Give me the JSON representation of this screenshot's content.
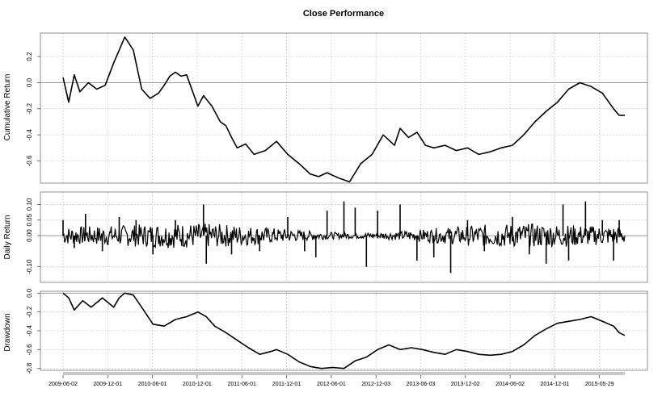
{
  "chart_data": [
    {
      "panel": "cumulative",
      "type": "line",
      "title": "Close Performance",
      "ylabel": "Cumulative Return",
      "yticks": [
        0.2,
        0.0,
        -0.2,
        -0.4,
        -0.6
      ],
      "ytick_labels": [
        "0.2",
        "0.0",
        "-0.2",
        "-0.4",
        "-0.6"
      ],
      "ylim": [
        -0.77,
        0.38
      ],
      "grid": true,
      "x": [
        0,
        0.01,
        0.02,
        0.03,
        0.045,
        0.06,
        0.075,
        0.09,
        0.11,
        0.125,
        0.14,
        0.155,
        0.17,
        0.18,
        0.19,
        0.2,
        0.21,
        0.22,
        0.24,
        0.25,
        0.265,
        0.28,
        0.29,
        0.3,
        0.31,
        0.325,
        0.34,
        0.36,
        0.38,
        0.4,
        0.42,
        0.44,
        0.455,
        0.47,
        0.49,
        0.51,
        0.53,
        0.55,
        0.57,
        0.59,
        0.6,
        0.615,
        0.63,
        0.645,
        0.66,
        0.68,
        0.7,
        0.72,
        0.74,
        0.76,
        0.78,
        0.8,
        0.82,
        0.84,
        0.86,
        0.88,
        0.9,
        0.92,
        0.94,
        0.96,
        0.98,
        0.99,
        1.0
      ],
      "y": [
        0.04,
        -0.15,
        0.06,
        -0.07,
        0.0,
        -0.05,
        -0.02,
        0.15,
        0.35,
        0.25,
        -0.05,
        -0.12,
        -0.08,
        -0.02,
        0.05,
        0.08,
        0.05,
        0.06,
        -0.18,
        -0.1,
        -0.18,
        -0.3,
        -0.33,
        -0.42,
        -0.5,
        -0.47,
        -0.55,
        -0.52,
        -0.45,
        -0.55,
        -0.62,
        -0.7,
        -0.72,
        -0.69,
        -0.73,
        -0.76,
        -0.62,
        -0.55,
        -0.4,
        -0.48,
        -0.35,
        -0.42,
        -0.38,
        -0.48,
        -0.5,
        -0.48,
        -0.52,
        -0.5,
        -0.55,
        -0.53,
        -0.5,
        -0.48,
        -0.4,
        -0.3,
        -0.22,
        -0.15,
        -0.05,
        0.0,
        -0.03,
        -0.08,
        -0.2,
        -0.25,
        -0.25
      ]
    },
    {
      "panel": "daily",
      "type": "line",
      "ylabel": "Daily Return",
      "yticks": [
        0.1,
        0.05,
        0.0,
        -0.1
      ],
      "ytick_labels": [
        "0.10",
        "0.05",
        "0.00",
        "-0.10"
      ],
      "ylim": [
        -0.15,
        0.14
      ],
      "grid": true,
      "spikes": [
        [
          0.0,
          0.05
        ],
        [
          0.02,
          -0.04
        ],
        [
          0.04,
          0.07
        ],
        [
          0.07,
          -0.05
        ],
        [
          0.1,
          0.06
        ],
        [
          0.13,
          0.05
        ],
        [
          0.16,
          -0.06
        ],
        [
          0.2,
          0.05
        ],
        [
          0.25,
          0.1
        ],
        [
          0.255,
          -0.09
        ],
        [
          0.3,
          -0.06
        ],
        [
          0.35,
          -0.05
        ],
        [
          0.4,
          0.06
        ],
        [
          0.43,
          -0.05
        ],
        [
          0.45,
          -0.07
        ],
        [
          0.47,
          0.08
        ],
        [
          0.5,
          0.11
        ],
        [
          0.52,
          0.09
        ],
        [
          0.54,
          -0.1
        ],
        [
          0.56,
          0.08
        ],
        [
          0.6,
          0.1
        ],
        [
          0.63,
          -0.08
        ],
        [
          0.66,
          -0.07
        ],
        [
          0.69,
          -0.12
        ],
        [
          0.72,
          0.05
        ],
        [
          0.75,
          -0.05
        ],
        [
          0.8,
          0.06
        ],
        [
          0.83,
          -0.06
        ],
        [
          0.86,
          -0.09
        ],
        [
          0.89,
          0.1
        ],
        [
          0.9,
          -0.08
        ],
        [
          0.93,
          0.11
        ],
        [
          0.96,
          0.05
        ],
        [
          0.98,
          -0.08
        ],
        [
          0.99,
          0.05
        ]
      ]
    },
    {
      "panel": "drawdown",
      "type": "line",
      "ylabel": "Drawdown",
      "yticks": [
        0.0,
        -0.2,
        -0.4,
        -0.6,
        -0.8
      ],
      "ytick_labels": [
        "0.0",
        "-0.2",
        "-0.4",
        "-0.6",
        "-0.8"
      ],
      "ylim": [
        -0.82,
        0.02
      ],
      "grid": true,
      "x": [
        0,
        0.01,
        0.02,
        0.035,
        0.05,
        0.07,
        0.09,
        0.1,
        0.11,
        0.125,
        0.14,
        0.16,
        0.18,
        0.2,
        0.22,
        0.24,
        0.255,
        0.27,
        0.29,
        0.31,
        0.33,
        0.35,
        0.37,
        0.38,
        0.4,
        0.42,
        0.44,
        0.46,
        0.48,
        0.5,
        0.52,
        0.54,
        0.56,
        0.58,
        0.6,
        0.62,
        0.64,
        0.66,
        0.68,
        0.7,
        0.72,
        0.74,
        0.76,
        0.78,
        0.8,
        0.82,
        0.84,
        0.86,
        0.88,
        0.9,
        0.92,
        0.94,
        0.96,
        0.98,
        0.99,
        1.0
      ],
      "y": [
        0.0,
        -0.05,
        -0.18,
        -0.08,
        -0.15,
        -0.05,
        -0.15,
        -0.05,
        0.0,
        -0.02,
        -0.15,
        -0.33,
        -0.35,
        -0.28,
        -0.25,
        -0.2,
        -0.25,
        -0.35,
        -0.42,
        -0.5,
        -0.58,
        -0.65,
        -0.62,
        -0.6,
        -0.65,
        -0.73,
        -0.78,
        -0.8,
        -0.79,
        -0.8,
        -0.72,
        -0.68,
        -0.6,
        -0.55,
        -0.6,
        -0.58,
        -0.6,
        -0.63,
        -0.65,
        -0.6,
        -0.62,
        -0.65,
        -0.66,
        -0.65,
        -0.62,
        -0.55,
        -0.45,
        -0.38,
        -0.32,
        -0.3,
        -0.28,
        -0.25,
        -0.3,
        -0.35,
        -0.42,
        -0.45
      ]
    }
  ],
  "xaxis": {
    "tick_labels": [
      "2009-06-02",
      "2009-12-01",
      "2010-06-01",
      "2010-12-01",
      "2011-06-01",
      "2011-12-01",
      "2012-06-01",
      "2012-12-03",
      "2013-06-03",
      "2013-12-02",
      "2014-06-02",
      "2014-12-01",
      "2015-05-29"
    ]
  }
}
